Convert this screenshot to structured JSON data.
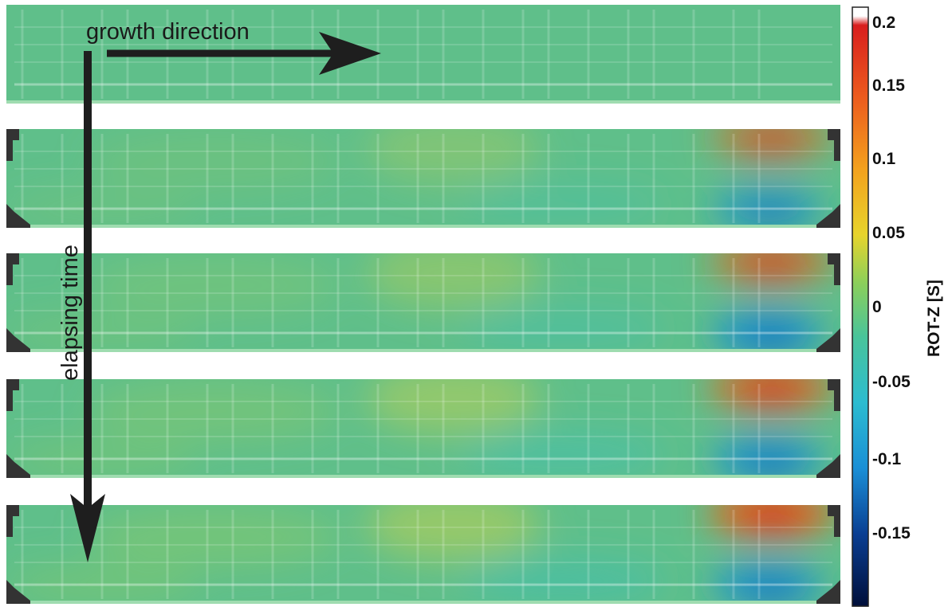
{
  "annotations": {
    "growth_direction": "growth direction",
    "elapsing_time": "elapsing time"
  },
  "colorbar": {
    "title": "ROT-Z [S]",
    "ticks": [
      "0.2",
      "0.15",
      "0.1",
      "0.05",
      "0",
      "-0.05",
      "-0.1",
      "-0.15"
    ],
    "range": [
      -0.2,
      0.21
    ],
    "colors": [
      "#000f3a",
      "#0a3e92",
      "#1a8fd6",
      "#2cbcd0",
      "#49c49a",
      "#8ccf5a",
      "#e7d42c",
      "#f3a11d",
      "#ec5b1e",
      "#d81e1e",
      "#ffffff"
    ]
  },
  "panels": [
    {
      "name": "panel-1",
      "hot": 0.0,
      "cold": 0.0,
      "mid": 0.0
    },
    {
      "name": "panel-2",
      "hot": 0.6,
      "cold": 0.7,
      "mid": 0.35
    },
    {
      "name": "panel-3",
      "hot": 0.7,
      "cold": 0.9,
      "mid": 0.45
    },
    {
      "name": "panel-4",
      "hot": 0.85,
      "cold": 0.85,
      "mid": 0.55
    },
    {
      "name": "panel-5",
      "hot": 1.0,
      "cold": 0.85,
      "mid": 0.6
    }
  ]
}
